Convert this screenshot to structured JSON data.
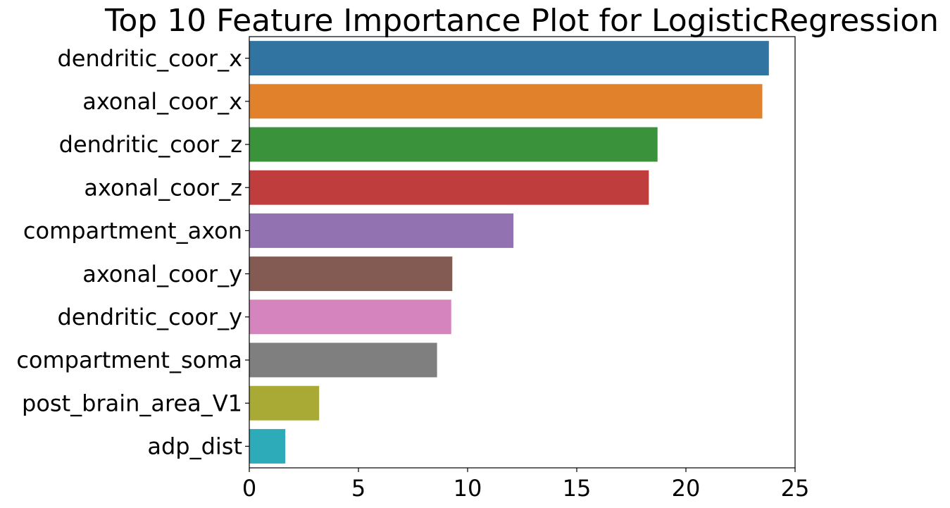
{
  "chart_data": {
    "type": "bar",
    "orientation": "horizontal",
    "title": "Top 10 Feature Importance Plot for LogisticRegression",
    "xlabel": "",
    "ylabel": "",
    "xlim": [
      0,
      25
    ],
    "xticks": [
      0,
      5,
      10,
      15,
      20,
      25
    ],
    "xtick_labels": [
      "0",
      "5",
      "10",
      "15",
      "20",
      "25"
    ],
    "grid": false,
    "legend": "none",
    "categories": [
      "dendritic_coor_x",
      "axonal_coor_x",
      "dendritic_coor_z",
      "axonal_coor_z",
      "compartment_axon",
      "axonal_coor_y",
      "dendritic_coor_y",
      "compartment_soma",
      "post_brain_area_V1",
      "adp_dist"
    ],
    "values": [
      23.8,
      23.5,
      18.7,
      18.3,
      12.1,
      9.3,
      9.25,
      8.6,
      3.2,
      1.65
    ],
    "colors": [
      "#3274a1",
      "#e1812c",
      "#3a923a",
      "#c03d3e",
      "#9372b2",
      "#845b53",
      "#d684bd",
      "#7f7f7f",
      "#a9aa35",
      "#2eabb8"
    ]
  }
}
